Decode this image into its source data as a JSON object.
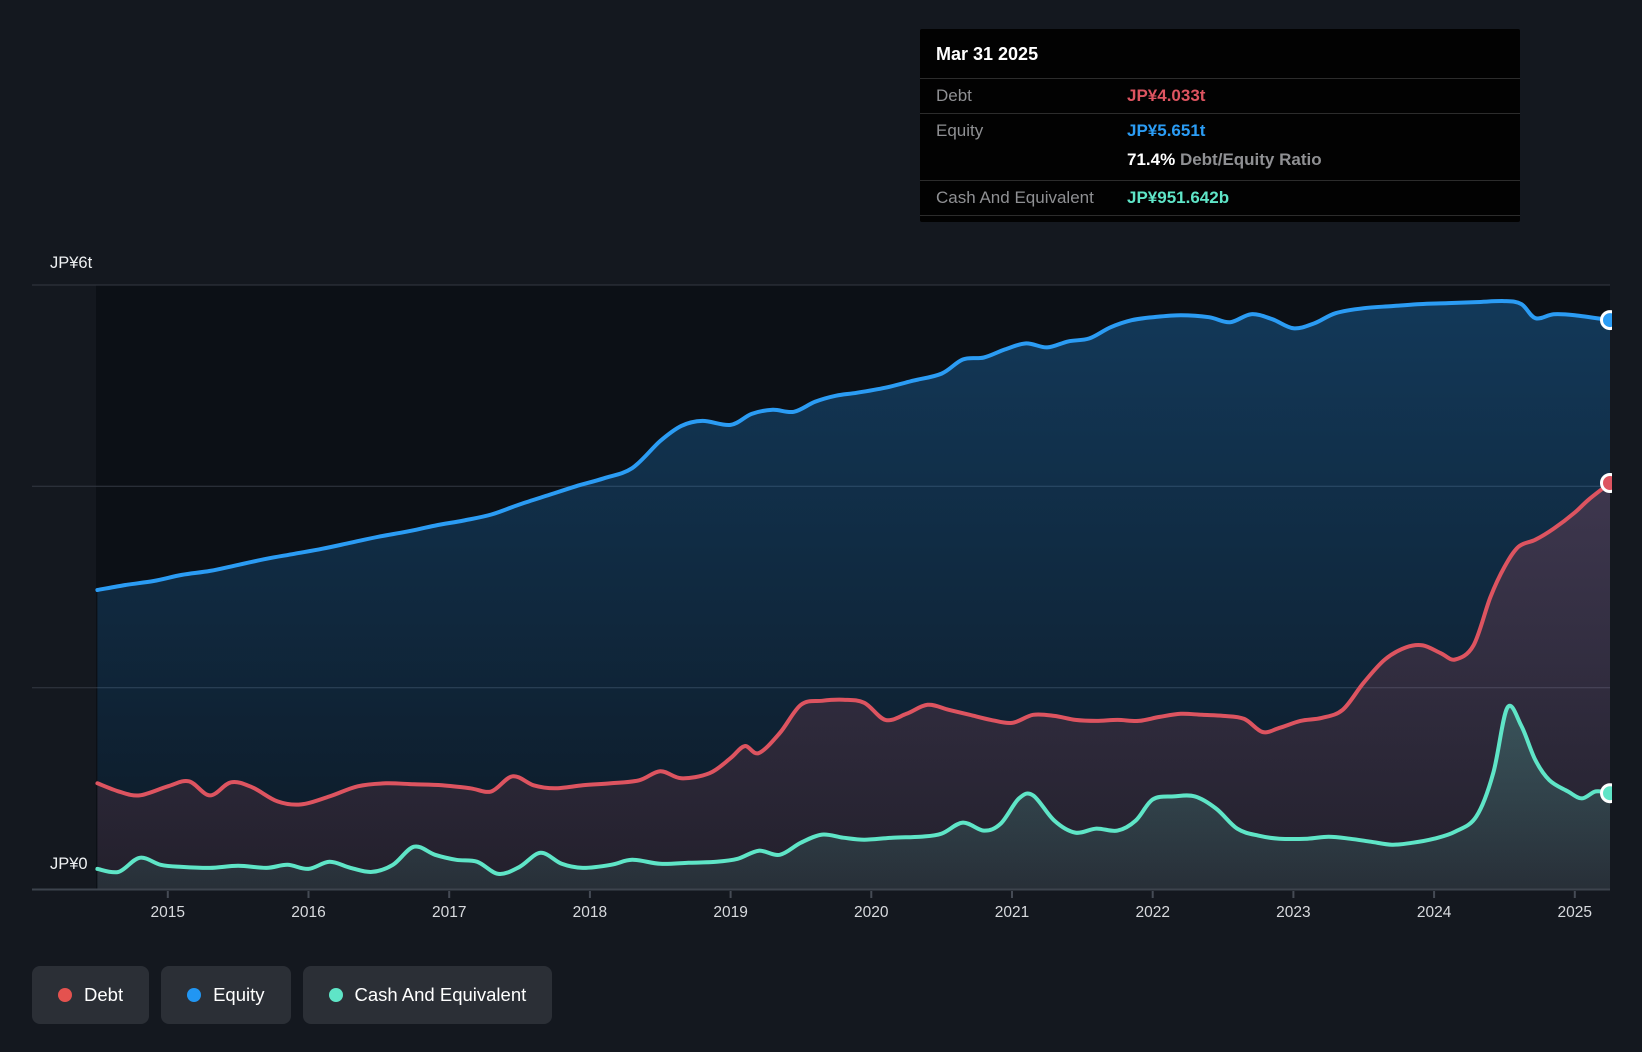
{
  "window": {
    "background": "#14181f"
  },
  "tooltip": {
    "date": "Mar 31 2025",
    "debt_label": "Debt",
    "debt_value": "JP¥4.033t",
    "equity_label": "Equity",
    "equity_value": "JP¥5.651t",
    "ratio_value": "71.4%",
    "ratio_label": "Debt/Equity Ratio",
    "cash_label": "Cash And Equivalent",
    "cash_value": "JP¥951.642b"
  },
  "legend": {
    "items": [
      {
        "label": "Debt",
        "color": "#e4524f"
      },
      {
        "label": "Equity",
        "color": "#2196f3"
      },
      {
        "label": "Cash And Equivalent",
        "color": "#5fe5c7"
      }
    ]
  },
  "chart_data": {
    "type": "area",
    "unit": "JP¥ trillions",
    "x_domain": [
      2014.49,
      2025.25
    ],
    "x_axis": {
      "tick_labels": [
        "2015",
        "2016",
        "2017",
        "2018",
        "2019",
        "2020",
        "2021",
        "2022",
        "2023",
        "2024",
        "2025"
      ]
    },
    "y_axis": {
      "min": 0,
      "max": 6,
      "top_label": "JP¥6t",
      "zero_label": "JP¥0",
      "gridline_values": [
        6,
        4,
        2
      ]
    },
    "grid": "horizontal-only",
    "legend_position": "bottom-left",
    "series": [
      {
        "name": "Equity",
        "color": "#2b9cf4",
        "fill_top": "rgba(33,150,243,0.30)",
        "fill_bottom": "rgba(33,150,243,0.07)",
        "end_value": 5.651,
        "points": [
          [
            2014.5,
            2.97
          ],
          [
            2014.7,
            3.02
          ],
          [
            2014.9,
            3.06
          ],
          [
            2015.1,
            3.12
          ],
          [
            2015.3,
            3.16
          ],
          [
            2015.5,
            3.22
          ],
          [
            2015.7,
            3.28
          ],
          [
            2015.9,
            3.33
          ],
          [
            2016.1,
            3.38
          ],
          [
            2016.3,
            3.44
          ],
          [
            2016.5,
            3.5
          ],
          [
            2016.7,
            3.55
          ],
          [
            2016.9,
            3.61
          ],
          [
            2017.1,
            3.66
          ],
          [
            2017.3,
            3.72
          ],
          [
            2017.5,
            3.82
          ],
          [
            2017.7,
            3.91
          ],
          [
            2017.9,
            4.0
          ],
          [
            2018.1,
            4.08
          ],
          [
            2018.3,
            4.18
          ],
          [
            2018.5,
            4.45
          ],
          [
            2018.65,
            4.6
          ],
          [
            2018.8,
            4.65
          ],
          [
            2019.0,
            4.61
          ],
          [
            2019.15,
            4.72
          ],
          [
            2019.3,
            4.76
          ],
          [
            2019.45,
            4.74
          ],
          [
            2019.6,
            4.84
          ],
          [
            2019.75,
            4.9
          ],
          [
            2019.9,
            4.93
          ],
          [
            2020.1,
            4.98
          ],
          [
            2020.3,
            5.05
          ],
          [
            2020.5,
            5.12
          ],
          [
            2020.65,
            5.26
          ],
          [
            2020.8,
            5.28
          ],
          [
            2020.95,
            5.36
          ],
          [
            2021.1,
            5.42
          ],
          [
            2021.25,
            5.38
          ],
          [
            2021.4,
            5.44
          ],
          [
            2021.55,
            5.47
          ],
          [
            2021.7,
            5.58
          ],
          [
            2021.85,
            5.65
          ],
          [
            2022.0,
            5.68
          ],
          [
            2022.2,
            5.7
          ],
          [
            2022.4,
            5.68
          ],
          [
            2022.55,
            5.63
          ],
          [
            2022.7,
            5.71
          ],
          [
            2022.85,
            5.66
          ],
          [
            2023.0,
            5.57
          ],
          [
            2023.15,
            5.62
          ],
          [
            2023.3,
            5.72
          ],
          [
            2023.5,
            5.77
          ],
          [
            2023.7,
            5.79
          ],
          [
            2023.9,
            5.81
          ],
          [
            2024.1,
            5.82
          ],
          [
            2024.3,
            5.83
          ],
          [
            2024.5,
            5.84
          ],
          [
            2024.62,
            5.81
          ],
          [
            2024.72,
            5.67
          ],
          [
            2024.85,
            5.71
          ],
          [
            2025.0,
            5.7
          ],
          [
            2025.25,
            5.651
          ]
        ]
      },
      {
        "name": "Debt",
        "color": "#dd5460",
        "fill_top": "rgba(221,84,96,0.22)",
        "fill_bottom": "rgba(221,84,96,0.10)",
        "end_value": 4.033,
        "points": [
          [
            2014.5,
            1.05
          ],
          [
            2014.65,
            0.97
          ],
          [
            2014.8,
            0.93
          ],
          [
            2015.0,
            1.02
          ],
          [
            2015.15,
            1.07
          ],
          [
            2015.3,
            0.93
          ],
          [
            2015.45,
            1.06
          ],
          [
            2015.6,
            1.01
          ],
          [
            2015.78,
            0.87
          ],
          [
            2015.95,
            0.84
          ],
          [
            2016.15,
            0.92
          ],
          [
            2016.35,
            1.02
          ],
          [
            2016.55,
            1.05
          ],
          [
            2016.75,
            1.04
          ],
          [
            2016.95,
            1.03
          ],
          [
            2017.15,
            1.0
          ],
          [
            2017.3,
            0.97
          ],
          [
            2017.45,
            1.12
          ],
          [
            2017.6,
            1.03
          ],
          [
            2017.75,
            1.0
          ],
          [
            2017.95,
            1.03
          ],
          [
            2018.15,
            1.05
          ],
          [
            2018.35,
            1.08
          ],
          [
            2018.5,
            1.17
          ],
          [
            2018.65,
            1.1
          ],
          [
            2018.85,
            1.15
          ],
          [
            2019.0,
            1.3
          ],
          [
            2019.1,
            1.42
          ],
          [
            2019.2,
            1.35
          ],
          [
            2019.35,
            1.55
          ],
          [
            2019.5,
            1.83
          ],
          [
            2019.65,
            1.87
          ],
          [
            2019.8,
            1.88
          ],
          [
            2019.95,
            1.85
          ],
          [
            2020.1,
            1.68
          ],
          [
            2020.25,
            1.74
          ],
          [
            2020.4,
            1.83
          ],
          [
            2020.55,
            1.78
          ],
          [
            2020.7,
            1.73
          ],
          [
            2020.85,
            1.68
          ],
          [
            2021.0,
            1.65
          ],
          [
            2021.15,
            1.73
          ],
          [
            2021.3,
            1.72
          ],
          [
            2021.45,
            1.68
          ],
          [
            2021.6,
            1.67
          ],
          [
            2021.75,
            1.68
          ],
          [
            2021.9,
            1.67
          ],
          [
            2022.05,
            1.71
          ],
          [
            2022.2,
            1.74
          ],
          [
            2022.35,
            1.73
          ],
          [
            2022.5,
            1.72
          ],
          [
            2022.65,
            1.69
          ],
          [
            2022.78,
            1.56
          ],
          [
            2022.9,
            1.6
          ],
          [
            2023.05,
            1.67
          ],
          [
            2023.2,
            1.7
          ],
          [
            2023.35,
            1.78
          ],
          [
            2023.5,
            2.05
          ],
          [
            2023.65,
            2.28
          ],
          [
            2023.8,
            2.4
          ],
          [
            2023.92,
            2.42
          ],
          [
            2024.05,
            2.34
          ],
          [
            2024.15,
            2.28
          ],
          [
            2024.28,
            2.42
          ],
          [
            2024.4,
            2.9
          ],
          [
            2024.5,
            3.2
          ],
          [
            2024.6,
            3.4
          ],
          [
            2024.72,
            3.47
          ],
          [
            2024.85,
            3.58
          ],
          [
            2025.0,
            3.74
          ],
          [
            2025.1,
            3.87
          ],
          [
            2025.25,
            4.033
          ]
        ]
      },
      {
        "name": "Cash And Equivalent",
        "color": "#5fe5c7",
        "fill_top": "rgba(95,229,199,0.22)",
        "fill_bottom": "rgba(95,229,199,0.08)",
        "end_value": 0.951642,
        "points": [
          [
            2014.5,
            0.2
          ],
          [
            2014.65,
            0.17
          ],
          [
            2014.8,
            0.31
          ],
          [
            2014.95,
            0.24
          ],
          [
            2015.1,
            0.22
          ],
          [
            2015.3,
            0.21
          ],
          [
            2015.5,
            0.23
          ],
          [
            2015.7,
            0.21
          ],
          [
            2015.85,
            0.24
          ],
          [
            2016.0,
            0.2
          ],
          [
            2016.15,
            0.27
          ],
          [
            2016.3,
            0.21
          ],
          [
            2016.45,
            0.17
          ],
          [
            2016.6,
            0.24
          ],
          [
            2016.75,
            0.42
          ],
          [
            2016.9,
            0.34
          ],
          [
            2017.05,
            0.29
          ],
          [
            2017.2,
            0.27
          ],
          [
            2017.35,
            0.15
          ],
          [
            2017.5,
            0.22
          ],
          [
            2017.65,
            0.36
          ],
          [
            2017.8,
            0.25
          ],
          [
            2017.95,
            0.21
          ],
          [
            2018.15,
            0.24
          ],
          [
            2018.3,
            0.29
          ],
          [
            2018.5,
            0.25
          ],
          [
            2018.7,
            0.26
          ],
          [
            2018.9,
            0.27
          ],
          [
            2019.05,
            0.3
          ],
          [
            2019.2,
            0.38
          ],
          [
            2019.35,
            0.34
          ],
          [
            2019.5,
            0.46
          ],
          [
            2019.65,
            0.54
          ],
          [
            2019.8,
            0.51
          ],
          [
            2019.95,
            0.49
          ],
          [
            2020.15,
            0.51
          ],
          [
            2020.35,
            0.52
          ],
          [
            2020.5,
            0.55
          ],
          [
            2020.65,
            0.66
          ],
          [
            2020.8,
            0.58
          ],
          [
            2020.92,
            0.65
          ],
          [
            2021.05,
            0.9
          ],
          [
            2021.15,
            0.93
          ],
          [
            2021.3,
            0.68
          ],
          [
            2021.45,
            0.56
          ],
          [
            2021.6,
            0.6
          ],
          [
            2021.75,
            0.58
          ],
          [
            2021.88,
            0.68
          ],
          [
            2022.0,
            0.89
          ],
          [
            2022.15,
            0.92
          ],
          [
            2022.3,
            0.92
          ],
          [
            2022.45,
            0.8
          ],
          [
            2022.6,
            0.6
          ],
          [
            2022.75,
            0.53
          ],
          [
            2022.9,
            0.5
          ],
          [
            2023.1,
            0.5
          ],
          [
            2023.25,
            0.52
          ],
          [
            2023.4,
            0.5
          ],
          [
            2023.55,
            0.47
          ],
          [
            2023.7,
            0.44
          ],
          [
            2023.85,
            0.46
          ],
          [
            2024.0,
            0.5
          ],
          [
            2024.15,
            0.57
          ],
          [
            2024.3,
            0.72
          ],
          [
            2024.42,
            1.15
          ],
          [
            2024.52,
            1.8
          ],
          [
            2024.62,
            1.62
          ],
          [
            2024.72,
            1.28
          ],
          [
            2024.82,
            1.08
          ],
          [
            2024.95,
            0.97
          ],
          [
            2025.05,
            0.9
          ],
          [
            2025.15,
            0.97
          ],
          [
            2025.25,
            0.952
          ]
        ]
      }
    ]
  }
}
